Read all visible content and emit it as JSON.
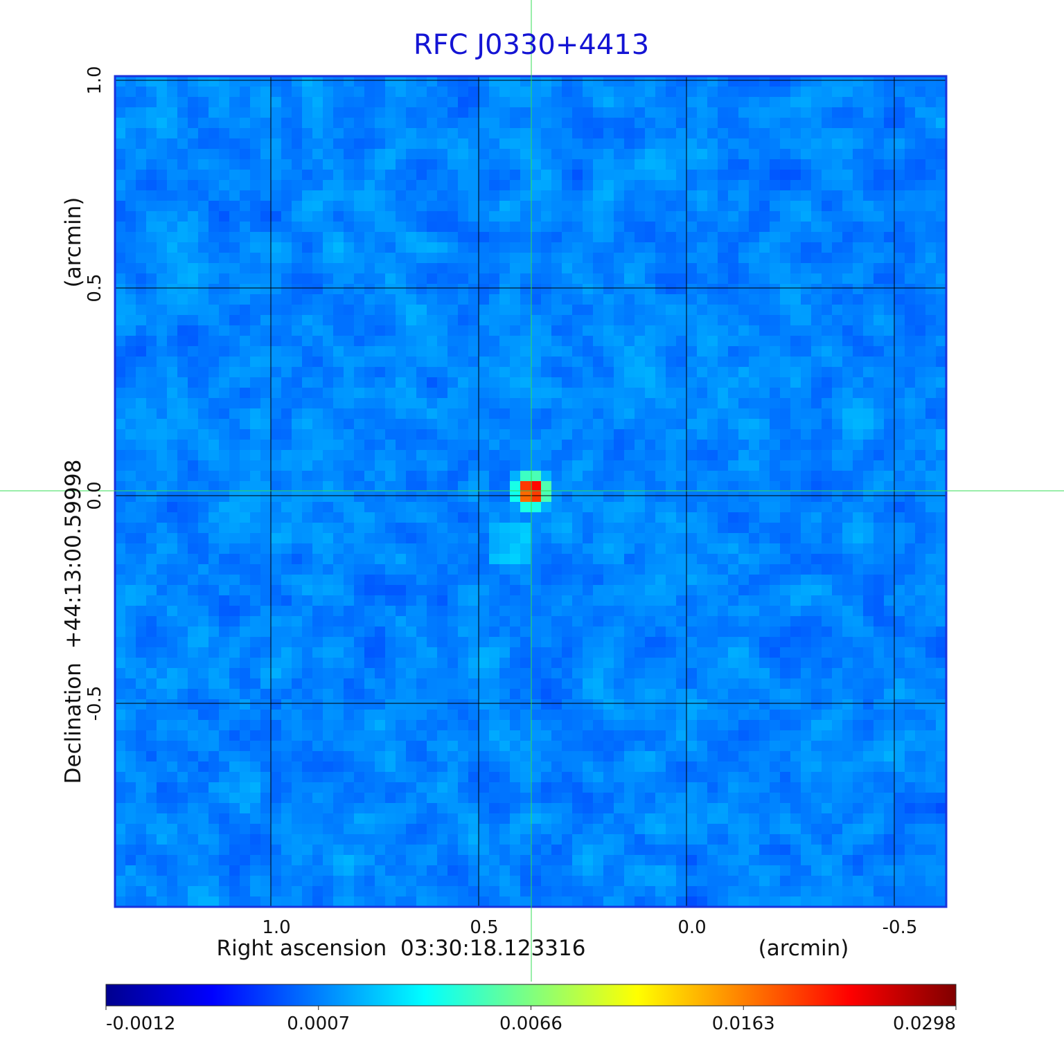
{
  "chart_data": {
    "type": "image",
    "title": "RFC J0330+4413",
    "xlabel": "Right ascension  03:30:18.123316",
    "xunit": "(arcmin)",
    "ylabel": "Declination  +44:13:00.59998",
    "yunit": "(arcmin)",
    "xlim": [
      1.375,
      -0.625
    ],
    "ylim": [
      -0.99,
      1.01
    ],
    "xticks": [
      {
        "value": 1,
        "label": "1.0"
      },
      0.5,
      {
        "value": 0,
        "label": "0.0"
      },
      -0.5
    ],
    "yticks": [
      -0.5,
      {
        "value": 0,
        "label": "0.0"
      },
      0.5,
      {
        "value": 1,
        "label": "1.0"
      }
    ],
    "grid": true,
    "colormap": "jet",
    "colorbar_ticks": [
      -0.0012,
      0.0007,
      0.0066,
      0.0163,
      0.0298
    ]
  }
}
